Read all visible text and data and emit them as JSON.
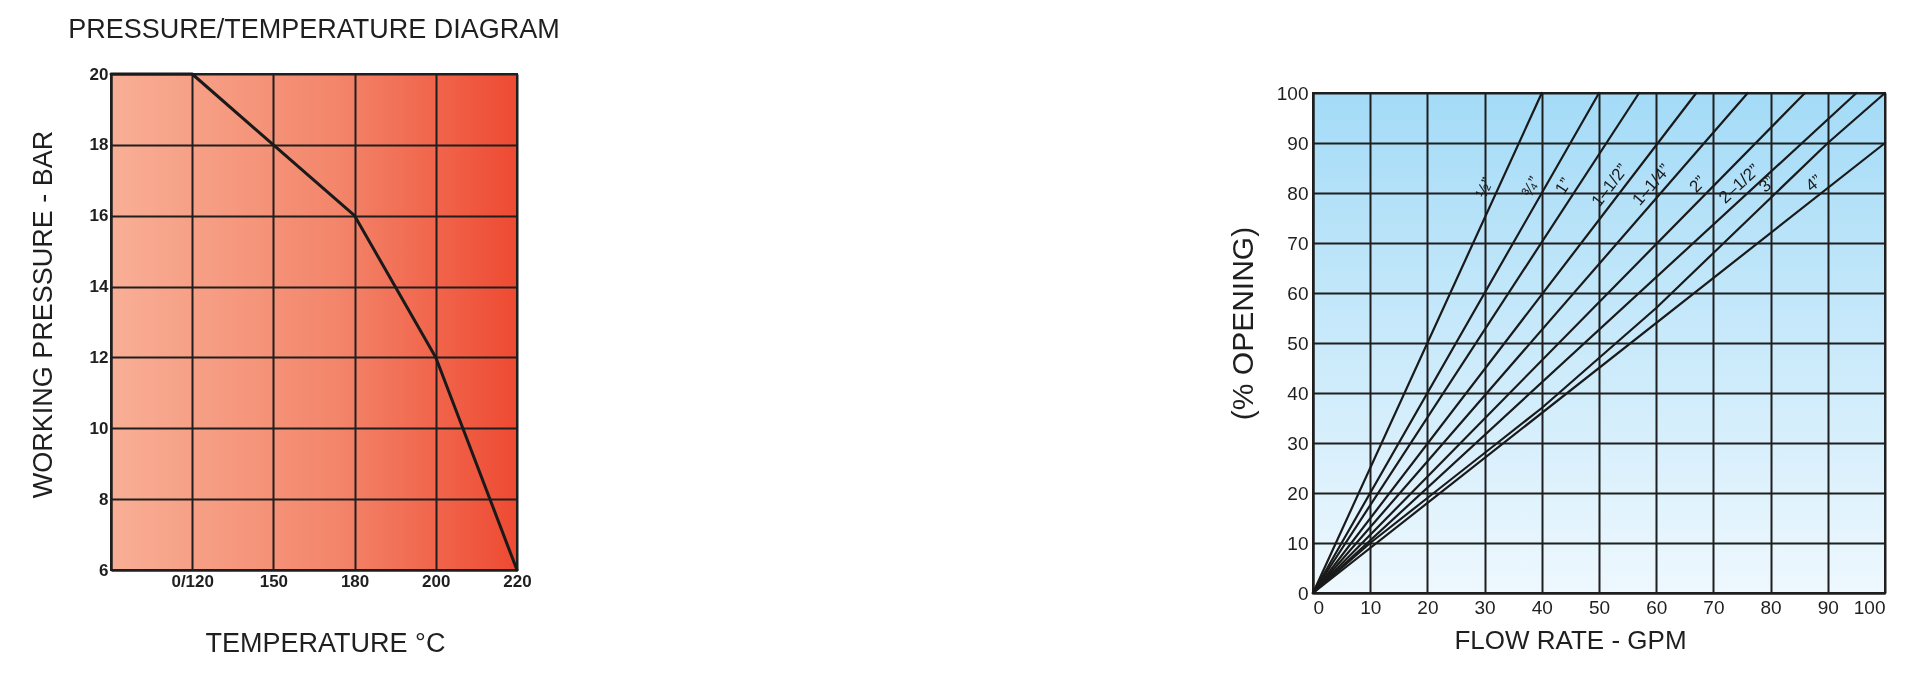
{
  "chart_data": [
    {
      "type": "line",
      "title": "PRESSURE/TEMPERATURE DIAGRAM",
      "xlabel": "TEMPERATURE °C",
      "ylabel": "WORKING PRESSURE - BAR",
      "categories": [
        null,
        "0/120",
        "150",
        "180",
        "200",
        "220"
      ],
      "values": [
        20,
        20,
        18,
        16,
        12,
        6
      ],
      "color": "#1a1a1a",
      "ylim": [
        6,
        20
      ],
      "yticks": [
        6,
        8,
        10,
        12,
        14,
        16,
        18,
        20
      ],
      "grid": true
    },
    {
      "type": "line",
      "xlabel": "FLOW RATE - GPM",
      "ylabel": "(% OPENING)",
      "xlim": [
        0,
        100
      ],
      "ylim": [
        0,
        100
      ],
      "xticks": [
        0,
        10,
        20,
        30,
        40,
        50,
        60,
        70,
        80,
        90,
        100
      ],
      "yticks": [
        0,
        10,
        20,
        30,
        40,
        50,
        60,
        70,
        80,
        90,
        100
      ],
      "grid": true,
      "series": [
        {
          "name": "½”",
          "color": "#1a1a1a",
          "x": [
            0,
            40
          ],
          "values": [
            0,
            100
          ]
        },
        {
          "name": "¾”",
          "color": "#1a1a1a",
          "x": [
            0,
            50
          ],
          "values": [
            0,
            100
          ]
        },
        {
          "name": "1”",
          "color": "#1a1a1a",
          "x": [
            0,
            57
          ],
          "values": [
            0,
            100
          ]
        },
        {
          "name": "1–1/2”",
          "color": "#1a1a1a",
          "x": [
            0,
            67
          ],
          "values": [
            0,
            100
          ]
        },
        {
          "name": "1–1/4”",
          "color": "#1a1a1a",
          "x": [
            0,
            76
          ],
          "values": [
            0,
            100
          ]
        },
        {
          "name": "2”",
          "color": "#1a1a1a",
          "x": [
            0,
            86
          ],
          "values": [
            0,
            100
          ]
        },
        {
          "name": "2–1/2”",
          "color": "#1a1a1a",
          "x": [
            0,
            95
          ],
          "values": [
            0,
            100
          ]
        },
        {
          "name": "3”",
          "color": "#1a1a1a",
          "x": [
            0,
            10,
            20,
            30,
            40,
            50,
            60,
            70,
            80,
            90,
            100
          ],
          "values": [
            0,
            10,
            19,
            28,
            37,
            47,
            57,
            68,
            79,
            90,
            100
          ]
        },
        {
          "name": "4”",
          "color": "#1a1a1a",
          "x": [
            0,
            100
          ],
          "values": [
            0,
            90
          ]
        }
      ]
    }
  ]
}
